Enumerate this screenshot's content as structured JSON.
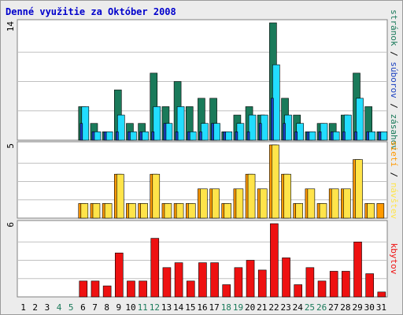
{
  "title": "Denné využitie za Október 2008",
  "colors": {
    "background": "#ececec",
    "panel": "#ffffff",
    "grid": "#c0c0c0",
    "pages": "#1a7a5a",
    "files": "#22ddff",
    "hits": "#1a40c0",
    "visits": "#ff9900",
    "sites": "#ffe44a",
    "kbytes": "#ee1111",
    "weekend": "#1a7a5a",
    "weekday": "#000000"
  },
  "chart_data": {
    "type": "bar",
    "categories": [
      "1",
      "2",
      "3",
      "4",
      "5",
      "6",
      "7",
      "8",
      "9",
      "10",
      "11",
      "12",
      "13",
      "14",
      "15",
      "16",
      "17",
      "18",
      "19",
      "20",
      "21",
      "22",
      "23",
      "24",
      "25",
      "26",
      "27",
      "28",
      "29",
      "30",
      "31"
    ],
    "weekend_days": [
      "4",
      "5",
      "11",
      "12",
      "18",
      "19",
      "25",
      "26"
    ],
    "panels": [
      {
        "id": "usage",
        "ymax": 14,
        "ymax_label": "14",
        "side_label": [
          {
            "text": "stránok",
            "color_key": "pages"
          },
          {
            "text": " / ",
            "color_key": "weekday"
          },
          {
            "text": "súborov",
            "color_key": "hits"
          },
          {
            "text": " / ",
            "color_key": "weekday"
          },
          {
            "text": "zásahov",
            "color_key": "pages"
          }
        ],
        "series": [
          {
            "color_key": "pages",
            "values": [
              0,
              0,
              0,
              0,
              0,
              4,
              2,
              1,
              6,
              2,
              2,
              8,
              4,
              7,
              4,
              5,
              5,
              1,
              3,
              4,
              3,
              14,
              5,
              3,
              1,
              2,
              2,
              3,
              8,
              4,
              1
            ]
          },
          {
            "color_key": "files",
            "values": [
              0,
              0,
              0,
              0,
              0,
              4,
              1,
              1,
              3,
              1,
              1,
              4,
              2,
              4,
              1,
              2,
              2,
              1,
              2,
              3,
              3,
              9,
              3,
              2,
              1,
              2,
              1,
              3,
              5,
              1,
              1
            ]
          },
          {
            "color_key": "hits",
            "values": [
              0,
              0,
              0,
              0,
              0,
              2,
              1,
              1,
              1,
              1,
              1,
              1,
              2,
              1,
              1,
              1,
              2,
              1,
              1,
              1,
              2,
              5,
              2,
              1,
              1,
              1,
              1,
              1,
              1,
              1,
              1
            ]
          }
        ]
      },
      {
        "id": "visits",
        "ymax": 5,
        "ymax_label": "5",
        "side_label": [
          {
            "text": "sietí",
            "color_key": "visits"
          },
          {
            "text": " / ",
            "color_key": "weekday"
          },
          {
            "text": "návštev",
            "color_key": "sites"
          }
        ],
        "series": [
          {
            "color_key": "visits",
            "values": [
              0,
              0,
              0,
              0,
              0,
              1,
              1,
              1,
              3,
              1,
              1,
              3,
              1,
              1,
              1,
              2,
              2,
              1,
              2,
              3,
              2,
              5,
              3,
              1,
              2,
              1,
              2,
              2,
              4,
              1,
              1
            ]
          },
          {
            "color_key": "sites",
            "values": [
              0,
              0,
              0,
              0,
              0,
              1,
              1,
              1,
              3,
              1,
              1,
              3,
              1,
              1,
              1,
              2,
              2,
              1,
              2,
              3,
              2,
              5,
              3,
              1,
              2,
              1,
              2,
              2,
              4,
              1,
              0
            ]
          }
        ]
      },
      {
        "id": "kbytes",
        "ymax": 6,
        "ymax_label": "6",
        "side_label": [
          {
            "text": "kbytov",
            "color_key": "kbytes"
          }
        ],
        "series": [
          {
            "color_key": "kbytes",
            "values": [
              0,
              0,
              0,
              0,
              0,
              1.3,
              1.3,
              0.9,
              3.6,
              1.3,
              1.3,
              4.8,
              2.4,
              2.8,
              1.3,
              2.8,
              2.8,
              1.0,
              2.4,
              3.0,
              2.2,
              6.0,
              3.2,
              1.0,
              2.4,
              1.3,
              2.1,
              2.1,
              4.5,
              1.9,
              0.4
            ]
          }
        ]
      }
    ]
  }
}
